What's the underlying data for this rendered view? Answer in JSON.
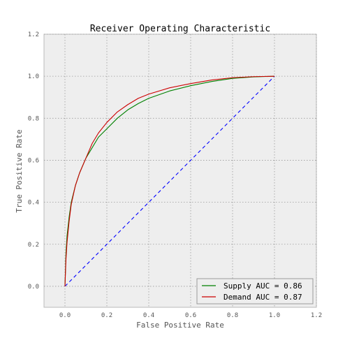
{
  "chart_data": {
    "type": "line",
    "title": "Receiver Operating Characteristic",
    "xlabel": "False Positive Rate",
    "ylabel": "True Positive Rate",
    "xlim": [
      -0.1,
      1.2
    ],
    "ylim": [
      -0.1,
      1.2
    ],
    "xticks": [
      "0.0",
      "0.2",
      "0.4",
      "0.6",
      "0.8",
      "1.0",
      "1.2"
    ],
    "yticks": [
      "0.0",
      "0.2",
      "0.4",
      "0.6",
      "0.8",
      "1.0",
      "1.2"
    ],
    "xtick_values": [
      0.0,
      0.2,
      0.4,
      0.6,
      0.8,
      1.0,
      1.2
    ],
    "ytick_values": [
      0.0,
      0.2,
      0.4,
      0.6,
      0.8,
      1.0,
      1.2
    ],
    "grid": true,
    "legend_position": "bottom-right",
    "series": [
      {
        "name": "Supply AUC = 0.86",
        "color": "#008000",
        "style": "solid",
        "x": [
          0.0,
          0.005,
          0.01,
          0.02,
          0.03,
          0.05,
          0.07,
          0.1,
          0.13,
          0.16,
          0.2,
          0.25,
          0.3,
          0.35,
          0.4,
          0.5,
          0.6,
          0.7,
          0.8,
          0.9,
          1.0
        ],
        "y": [
          0.0,
          0.16,
          0.24,
          0.33,
          0.4,
          0.48,
          0.54,
          0.61,
          0.66,
          0.71,
          0.75,
          0.8,
          0.84,
          0.87,
          0.895,
          0.93,
          0.955,
          0.975,
          0.99,
          0.997,
          1.0
        ]
      },
      {
        "name": "Demand AUC = 0.87",
        "color": "#cc0000",
        "style": "solid",
        "x": [
          0.0,
          0.005,
          0.01,
          0.02,
          0.03,
          0.05,
          0.07,
          0.1,
          0.13,
          0.16,
          0.2,
          0.25,
          0.3,
          0.35,
          0.4,
          0.5,
          0.6,
          0.7,
          0.8,
          0.9,
          1.0
        ],
        "y": [
          0.0,
          0.13,
          0.21,
          0.31,
          0.39,
          0.48,
          0.54,
          0.61,
          0.68,
          0.73,
          0.78,
          0.83,
          0.865,
          0.895,
          0.915,
          0.945,
          0.965,
          0.982,
          0.993,
          0.998,
          1.0
        ]
      },
      {
        "name": "",
        "color": "#0000ff",
        "style": "dashed",
        "x": [
          0.0,
          1.0
        ],
        "y": [
          0.0,
          1.0
        ]
      }
    ]
  }
}
